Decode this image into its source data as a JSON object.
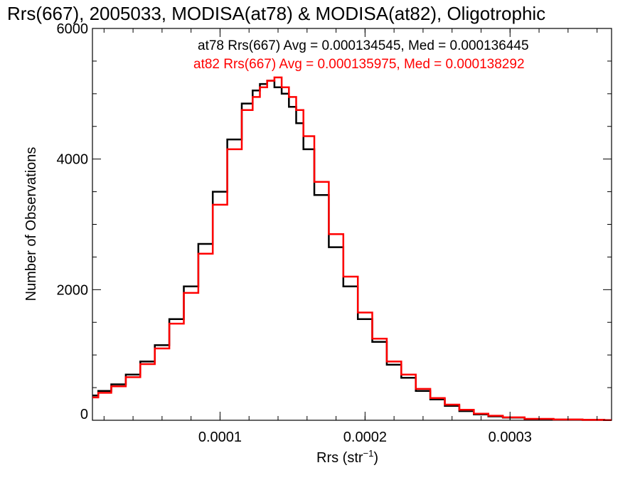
{
  "chart_data": {
    "type": "line",
    "title": "Rrs(667), 2005033, MODISA(at78) & MODISA(at82), Oligotrophic",
    "xlabel": "Rrs (str",
    "xlabel_sup": "−1",
    "xlabel_end": ")",
    "ylabel": "Number of Observations",
    "xlim": [
      1.2e-05,
      0.00037
    ],
    "ylim": [
      0,
      6000
    ],
    "x_ticks": [
      {
        "value": 0.0001,
        "label": "0.0001"
      },
      {
        "value": 0.0002,
        "label": "0.0002"
      },
      {
        "value": 0.0003,
        "label": "0.0003"
      }
    ],
    "y_ticks": [
      {
        "value": 0,
        "label": "0"
      },
      {
        "value": 2000,
        "label": "2000"
      },
      {
        "value": 4000,
        "label": "4000"
      },
      {
        "value": 6000,
        "label": "6000"
      }
    ],
    "legend_placement": "top-right",
    "series": [
      {
        "label": "at78 Rrs(667) Avg = 0.000134545, Med = 0.000136445",
        "color": "#000000",
        "x": [
          1.2e-05,
          2e-05,
          3e-05,
          4e-05,
          5e-05,
          6e-05,
          7e-05,
          8e-05,
          9e-05,
          0.0001,
          0.00011,
          0.00012,
          0.000125,
          0.00013,
          0.000135,
          0.00014,
          0.000145,
          0.00015,
          0.000155,
          0.00016,
          0.00017,
          0.00018,
          0.00019,
          0.0002,
          0.00021,
          0.00022,
          0.00023,
          0.00024,
          0.00025,
          0.00026,
          0.00027,
          0.00028,
          0.00029,
          0.0003,
          0.00032,
          0.00034,
          0.00036,
          0.00037
        ],
        "y": [
          380,
          450,
          550,
          700,
          900,
          1150,
          1550,
          2050,
          2700,
          3500,
          4300,
          4850,
          5050,
          5150,
          5200,
          5100,
          5000,
          4800,
          4550,
          4150,
          3450,
          2650,
          2050,
          1550,
          1200,
          850,
          650,
          450,
          320,
          220,
          140,
          90,
          60,
          40,
          20,
          10,
          5,
          2
        ]
      },
      {
        "label": "at82 Rrs(667) Avg = 0.000135975, Med = 0.000138292",
        "color": "#ff0000",
        "x": [
          1.2e-05,
          2e-05,
          3e-05,
          4e-05,
          5e-05,
          6e-05,
          7e-05,
          8e-05,
          9e-05,
          0.0001,
          0.00011,
          0.00012,
          0.000125,
          0.00013,
          0.000135,
          0.00014,
          0.000145,
          0.00015,
          0.000155,
          0.00016,
          0.00017,
          0.00018,
          0.00019,
          0.0002,
          0.00021,
          0.00022,
          0.00023,
          0.00024,
          0.00025,
          0.00026,
          0.00027,
          0.00028,
          0.00029,
          0.0003,
          0.00032,
          0.00034,
          0.00036,
          0.00037
        ],
        "y": [
          350,
          420,
          520,
          660,
          860,
          1100,
          1480,
          1950,
          2550,
          3300,
          4150,
          4750,
          4950,
          5100,
          5200,
          5250,
          5100,
          4950,
          4750,
          4350,
          3650,
          2850,
          2200,
          1650,
          1250,
          900,
          700,
          480,
          340,
          240,
          160,
          100,
          70,
          45,
          22,
          12,
          6,
          2
        ]
      }
    ]
  }
}
